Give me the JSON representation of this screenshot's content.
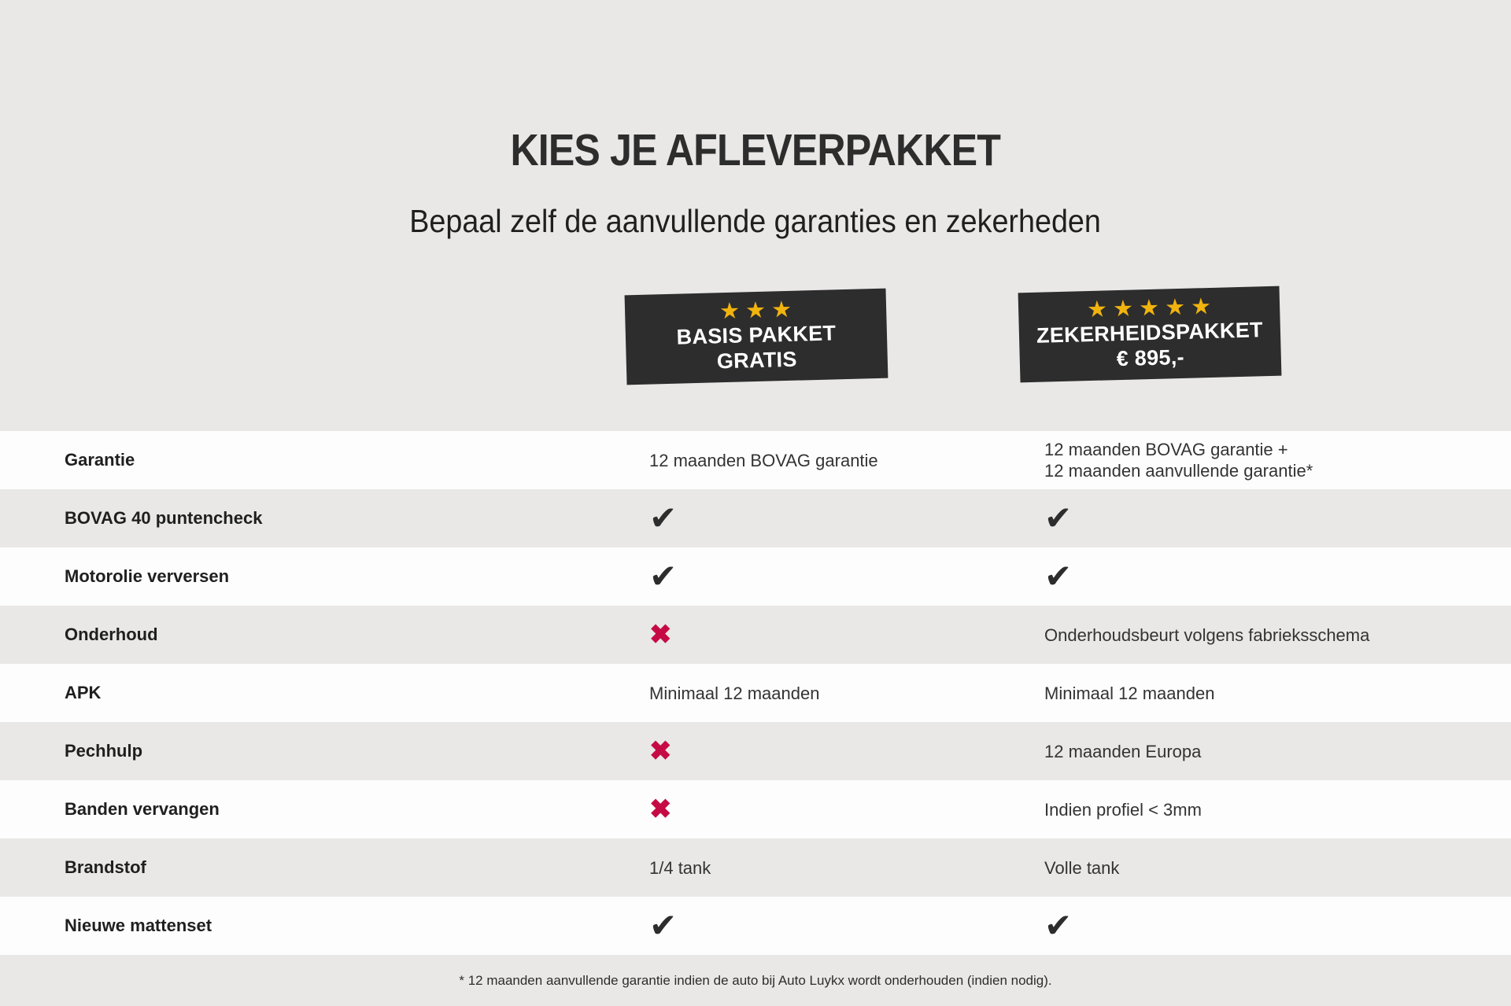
{
  "header": {
    "title": "KIES JE AFLEVERPAKKET",
    "subtitle": "Bepaal zelf de aanvullende garanties en zekerheden"
  },
  "packages": [
    {
      "name": "BASIS PAKKET",
      "price": "GRATIS",
      "stars": 3
    },
    {
      "name": "ZEKERHEIDSPAKKET",
      "price": "€ 895,-",
      "stars": 5
    }
  ],
  "table": {
    "rows": [
      {
        "label": "Garantie",
        "basis": {
          "kind": "text",
          "text": "12 maanden BOVAG garantie"
        },
        "zekerheid": {
          "kind": "text",
          "text": "12 maanden BOVAG garantie +\n12 maanden aanvullende garantie*"
        }
      },
      {
        "label": "BOVAG 40 puntencheck",
        "basis": {
          "kind": "check"
        },
        "zekerheid": {
          "kind": "check"
        }
      },
      {
        "label": "Motorolie verversen",
        "basis": {
          "kind": "check"
        },
        "zekerheid": {
          "kind": "check"
        }
      },
      {
        "label": "Onderhoud",
        "basis": {
          "kind": "cross"
        },
        "zekerheid": {
          "kind": "text",
          "text": "Onderhoudsbeurt volgens fabrieksschema"
        }
      },
      {
        "label": "APK",
        "basis": {
          "kind": "text",
          "text": "Minimaal 12 maanden"
        },
        "zekerheid": {
          "kind": "text",
          "text": "Minimaal 12 maanden"
        }
      },
      {
        "label": "Pechhulp",
        "basis": {
          "kind": "cross"
        },
        "zekerheid": {
          "kind": "text",
          "text": "12 maanden Europa"
        }
      },
      {
        "label": "Banden vervangen",
        "basis": {
          "kind": "cross"
        },
        "zekerheid": {
          "kind": "text",
          "text": "Indien profiel < 3mm"
        }
      },
      {
        "label": "Brandstof",
        "basis": {
          "kind": "text",
          "text": "1/4 tank"
        },
        "zekerheid": {
          "kind": "text",
          "text": "Volle tank"
        }
      },
      {
        "label": "Nieuwe mattenset",
        "basis": {
          "kind": "check"
        },
        "zekerheid": {
          "kind": "check"
        }
      }
    ]
  },
  "footnote": "* 12 maanden aanvullende garantie indien de auto bij Auto Luykx wordt onderhouden (indien nodig).",
  "icons": {
    "check": "✔",
    "cross": "✖",
    "star": "★"
  },
  "colors": {
    "page_bg": "#e9e8e7",
    "row_white": "#fdfdfd",
    "row_gray": "#e9e8e7",
    "card_bg": "#2d2d2d",
    "star_gold": "#f1b30e",
    "check": "#2d2d2d",
    "cross": "#c60b44",
    "text": "#2d2d2d"
  }
}
